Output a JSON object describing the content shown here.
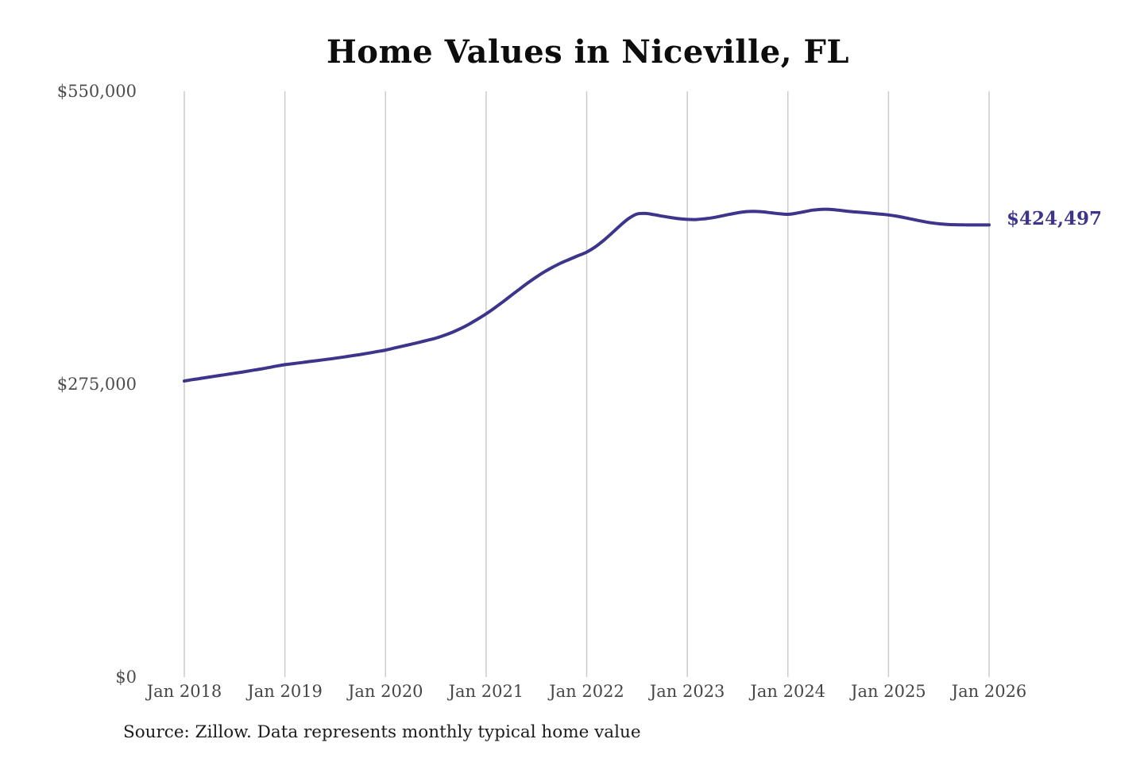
{
  "title": "Home Values in Niceville, FL",
  "source_note": "Source: Zillow. Data represents monthly typical home value",
  "end_label": "$424,497",
  "colors": {
    "line": "#3c358b",
    "grid": "#cccccc",
    "y_tick_text": "#4c4c4c",
    "x_tick_text": "#464646",
    "title_text": "#0d0d0d",
    "end_label_text": "#3c358b",
    "background": "#ffffff"
  },
  "chart_data": {
    "type": "line",
    "title": "Home Values in Niceville, FL",
    "xlabel": "",
    "ylabel": "",
    "x_start": "Jan 2018",
    "x_end": "Jan 2026",
    "frequency": "monthly",
    "x_tick_labels": [
      "Jan 2018",
      "Jan 2019",
      "Jan 2020",
      "Jan 2021",
      "Jan 2022",
      "Jan 2023",
      "Jan 2024",
      "Jan 2025",
      "Jan 2026"
    ],
    "y_ticks": [
      {
        "value": 0,
        "label": "$0"
      },
      {
        "value": 275000,
        "label": "$275,000"
      },
      {
        "value": 550000,
        "label": "$550,000"
      }
    ],
    "ylim": [
      0,
      550000
    ],
    "grid": "vertical-only",
    "legend": "none",
    "latest_value": 424497,
    "latest_value_label": "$424,497",
    "values": [
      278000,
      279300,
      280500,
      281700,
      282900,
      284100,
      285300,
      286500,
      287800,
      289100,
      290500,
      292000,
      293300,
      294300,
      295300,
      296300,
      297300,
      298300,
      299400,
      300500,
      301700,
      302900,
      304200,
      305600,
      307000,
      308800,
      310600,
      312400,
      314300,
      316200,
      318200,
      320800,
      323800,
      327400,
      331500,
      336100,
      341000,
      346500,
      352300,
      358300,
      364300,
      370200,
      375700,
      380700,
      385100,
      389000,
      392400,
      395700,
      399000,
      403800,
      409800,
      416800,
      424000,
      430500,
      434800,
      435300,
      434200,
      432800,
      431500,
      430400,
      429700,
      429600,
      430200,
      431300,
      432800,
      434400,
      435900,
      437000,
      437300,
      436800,
      435900,
      435000,
      434500,
      435500,
      437000,
      438400,
      439200,
      439100,
      438400,
      437500,
      436700,
      436100,
      435400,
      434700,
      433900,
      432700,
      431200,
      429600,
      428000,
      426600,
      425600,
      425000,
      424700,
      424600,
      424500,
      424500,
      424497
    ]
  }
}
